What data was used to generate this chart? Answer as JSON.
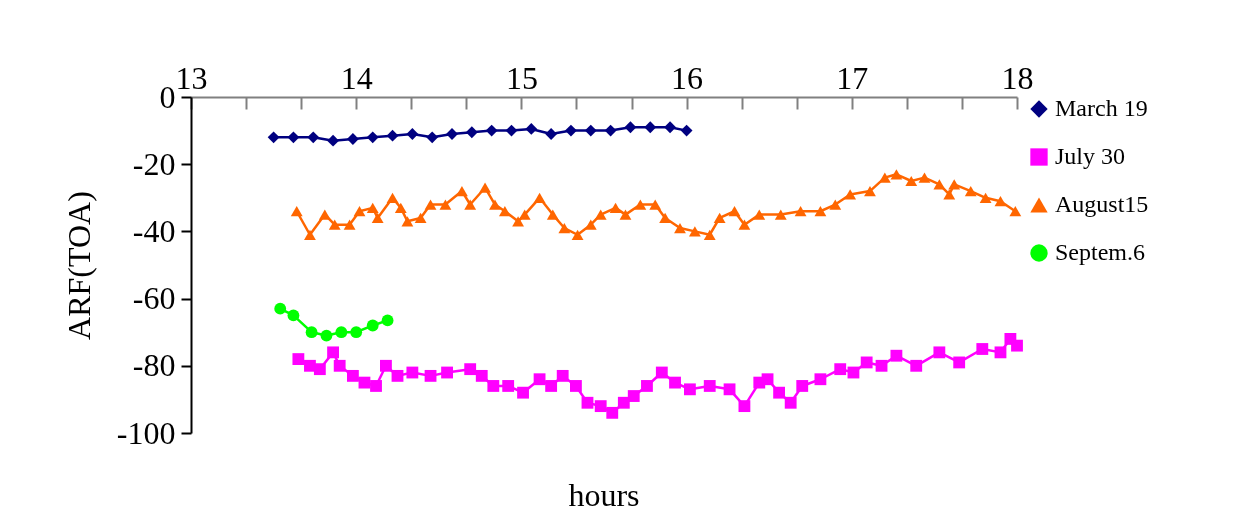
{
  "chart_data": {
    "type": "line",
    "xlabel": "hours",
    "ylabel": "ARF(TOA)",
    "xlim": [
      13,
      18
    ],
    "xticks": [
      13,
      {
        "value": 13.333,
        "label": null
      },
      {
        "value": 13.667,
        "label": null
      },
      14,
      {
        "value": 14.333,
        "label": null
      },
      {
        "value": 14.667,
        "label": null
      },
      15,
      {
        "value": 15.333,
        "label": null
      },
      {
        "value": 15.667,
        "label": null
      },
      16,
      {
        "value": 16.333,
        "label": null
      },
      {
        "value": 16.667,
        "label": null
      },
      17,
      {
        "value": 17.333,
        "label": null
      },
      {
        "value": 17.667,
        "label": null
      },
      18
    ],
    "ylim": [
      -100,
      0
    ],
    "yticks": [
      0,
      -20,
      -40,
      -60,
      -80,
      -100
    ],
    "grid": false,
    "legend": "right",
    "series": [
      {
        "name": "March 19",
        "color": "#000080",
        "marker": "diamond",
        "x": [
          13.5,
          13.62,
          13.74,
          13.86,
          13.98,
          14.1,
          14.22,
          14.34,
          14.46,
          14.58,
          14.7,
          14.82,
          14.94,
          15.06,
          15.18,
          15.3,
          15.42,
          15.54,
          15.66,
          15.78,
          15.9,
          16.0
        ],
        "values": [
          -12,
          -12,
          -12,
          -13,
          -12.5,
          -12,
          -11.5,
          -11,
          -12,
          -11,
          -10.5,
          -10,
          -10,
          -9.5,
          -11,
          -10,
          -10,
          -10,
          -9,
          -9,
          -9,
          -10
        ]
      },
      {
        "name": "July 30",
        "color": "#ff00ff",
        "marker": "square",
        "x": [
          13.65,
          13.72,
          13.78,
          13.86,
          13.9,
          13.98,
          14.05,
          14.12,
          14.18,
          14.25,
          14.34,
          14.45,
          14.55,
          14.69,
          14.76,
          14.83,
          14.92,
          15.01,
          15.11,
          15.18,
          15.25,
          15.33,
          15.4,
          15.48,
          15.55,
          15.62,
          15.68,
          15.76,
          15.85,
          15.93,
          16.02,
          16.14,
          16.26,
          16.35,
          16.44,
          16.49,
          16.56,
          16.63,
          16.7,
          16.81,
          16.93,
          17.01,
          17.09,
          17.18,
          17.27,
          17.39,
          17.53,
          17.65,
          17.79,
          17.9,
          17.96,
          18.0
        ],
        "values": [
          -78,
          -80,
          -81,
          -76,
          -80,
          -83,
          -85,
          -86,
          -80,
          -83,
          -82,
          -83,
          -82,
          -81,
          -83,
          -86,
          -86,
          -88,
          -84,
          -86,
          -83,
          -86,
          -91,
          -92,
          -94,
          -91,
          -89,
          -86,
          -82,
          -85,
          -87,
          -86,
          -87,
          -92,
          -85,
          -84,
          -88,
          -91,
          -86,
          -84,
          -81,
          -82,
          -79,
          -80,
          -77,
          -80,
          -76,
          -79,
          -75,
          -76,
          -72,
          -74
        ]
      },
      {
        "name": "August15",
        "color": "#ff6600",
        "marker": "triangle",
        "x": [
          13.64,
          13.72,
          13.81,
          13.87,
          13.96,
          14.02,
          14.1,
          14.13,
          14.22,
          14.27,
          14.31,
          14.39,
          14.45,
          14.54,
          14.64,
          14.69,
          14.78,
          14.84,
          14.9,
          14.98,
          15.02,
          15.11,
          15.19,
          15.26,
          15.34,
          15.42,
          15.48,
          15.57,
          15.63,
          15.72,
          15.81,
          15.87,
          15.96,
          16.05,
          16.14,
          16.2,
          16.29,
          16.35,
          16.44,
          16.57,
          16.69,
          16.81,
          16.9,
          16.99,
          17.11,
          17.2,
          17.27,
          17.36,
          17.44,
          17.53,
          17.59,
          17.62,
          17.72,
          17.81,
          17.9,
          17.99
        ],
        "values": [
          -34,
          -41,
          -35,
          -38,
          -38,
          -34,
          -33,
          -36,
          -30,
          -33,
          -37,
          -36,
          -32,
          -32,
          -28,
          -32,
          -27,
          -32,
          -34,
          -37,
          -35,
          -30,
          -35,
          -39,
          -41,
          -38,
          -35,
          -33,
          -35,
          -32,
          -32,
          -36,
          -39,
          -40,
          -41,
          -36,
          -34,
          -38,
          -35,
          -35,
          -34,
          -34,
          -32,
          -29,
          -28,
          -24,
          -23,
          -25,
          -24,
          -26,
          -29,
          -26,
          -28,
          -30,
          -31,
          -34
        ]
      },
      {
        "name": "Septem.6",
        "color": "#00ff00",
        "marker": "circle",
        "x": [
          13.54,
          13.62,
          13.73,
          13.82,
          13.91,
          14.0,
          14.1,
          14.19
        ],
        "values": [
          -63,
          -65,
          -70,
          -71,
          -70,
          -70,
          -68,
          -66.5
        ]
      }
    ]
  }
}
